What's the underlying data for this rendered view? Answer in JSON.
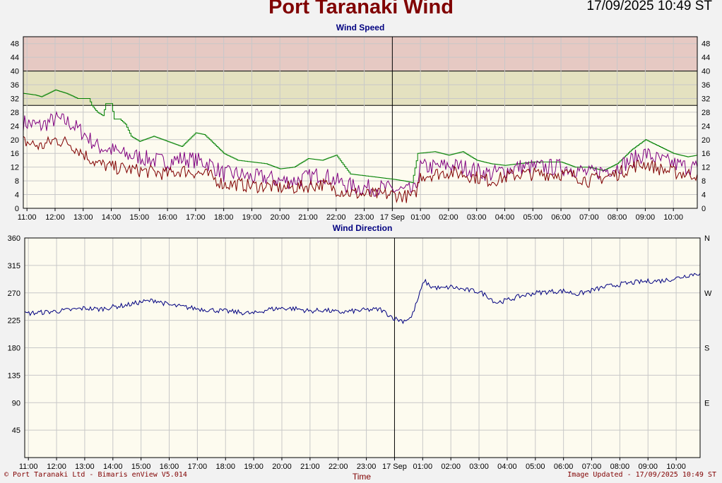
{
  "header": {
    "title": "Port Taranaki Wind",
    "datetime": "17/09/2025 10:49 ST"
  },
  "footer": {
    "left": "© Port Taranaki Ltd - Bimaris enView V5.014",
    "center": "Time",
    "right": "Image Updated - 17/09/2025 10:49 ST"
  },
  "colors": {
    "plot_bg": "#fdfbef",
    "band_high": "#e6c9c3",
    "band_mid": "#e4e1c0",
    "gust_max": "#008000",
    "gust": "#800080",
    "mean": "#800000",
    "direction": "#000080",
    "grid": "#c8c8c8"
  },
  "chart_data": [
    {
      "type": "line",
      "title": "Wind Speed",
      "ylim": [
        0,
        50
      ],
      "yticks": [
        0,
        4,
        8,
        12,
        16,
        20,
        24,
        28,
        32,
        36,
        40,
        44,
        48
      ],
      "bands": [
        {
          "from": 30,
          "to": 40,
          "color": "#e4e1c0"
        },
        {
          "from": 40,
          "to": 50,
          "color": "#e6c9c3"
        }
      ],
      "xlim": [
        10.87,
        34.85
      ],
      "x_unit": "hours since 00:00 16 Sep",
      "xtick_labels": [
        "11:00",
        "12:00",
        "13:00",
        "14:00",
        "15:00",
        "16:00",
        "17:00",
        "18:00",
        "19:00",
        "20:00",
        "21:00",
        "22:00",
        "23:00",
        "17 Sep",
        "01:00",
        "02:00",
        "03:00",
        "04:00",
        "05:00",
        "06:00",
        "07:00",
        "08:00",
        "09:00",
        "10:00"
      ],
      "day_boundary": 24,
      "grid": true,
      "series": [
        {
          "color": "#008000",
          "points": [
            [
              10.87,
              33.5
            ],
            [
              11.3,
              33
            ],
            [
              11.5,
              32.5
            ],
            [
              12.0,
              34.5
            ],
            [
              12.4,
              33.5
            ],
            [
              12.8,
              32
            ],
            [
              13.2,
              32
            ],
            [
              13.3,
              30
            ],
            [
              13.5,
              28
            ],
            [
              13.7,
              27
            ],
            [
              13.8,
              30.5
            ],
            [
              14.0,
              30.5
            ],
            [
              14.1,
              26
            ],
            [
              14.3,
              26
            ],
            [
              14.5,
              24.5
            ],
            [
              14.7,
              21
            ],
            [
              15.0,
              19.5
            ],
            [
              15.5,
              21
            ],
            [
              16.0,
              19.5
            ],
            [
              16.5,
              18
            ],
            [
              17.0,
              22
            ],
            [
              17.3,
              21.5
            ],
            [
              17.5,
              20
            ],
            [
              18.0,
              16
            ],
            [
              18.5,
              14
            ],
            [
              19.0,
              13.5
            ],
            [
              19.5,
              13
            ],
            [
              20.0,
              11.5
            ],
            [
              20.5,
              12
            ],
            [
              21.0,
              14.5
            ],
            [
              21.5,
              14
            ],
            [
              22.0,
              15.5
            ],
            [
              22.5,
              10
            ],
            [
              23.0,
              9.5
            ],
            [
              23.5,
              9
            ],
            [
              24.0,
              8.5
            ],
            [
              24.4,
              8
            ],
            [
              24.7,
              7.5
            ],
            [
              24.9,
              16
            ],
            [
              25.5,
              16.5
            ],
            [
              26.0,
              15.5
            ],
            [
              26.5,
              16.5
            ],
            [
              27.0,
              14
            ],
            [
              27.5,
              13
            ],
            [
              28.0,
              12.5
            ],
            [
              28.5,
              13
            ],
            [
              29.0,
              13.5
            ],
            [
              29.5,
              13.5
            ],
            [
              30.0,
              13.5
            ],
            [
              30.5,
              12
            ],
            [
              31.0,
              12
            ],
            [
              31.5,
              11
            ],
            [
              32.0,
              13
            ],
            [
              32.5,
              17
            ],
            [
              33.0,
              20
            ],
            [
              33.5,
              18
            ],
            [
              34.0,
              16
            ],
            [
              34.5,
              15
            ],
            [
              34.85,
              15.5
            ]
          ]
        },
        {
          "color": "#800080",
          "points": [
            [
              10.87,
              25
            ],
            [
              11.5,
              24
            ],
            [
              12.0,
              26
            ],
            [
              12.5,
              25
            ],
            [
              13.0,
              22
            ],
            [
              13.5,
              18
            ],
            [
              14.0,
              17
            ],
            [
              14.5,
              15.5
            ],
            [
              15.0,
              15
            ],
            [
              15.5,
              14
            ],
            [
              16.0,
              13.5
            ],
            [
              16.5,
              14.5
            ],
            [
              17.0,
              14
            ],
            [
              17.5,
              13
            ],
            [
              18.0,
              10
            ],
            [
              18.5,
              10
            ],
            [
              19.0,
              9
            ],
            [
              19.5,
              9
            ],
            [
              20.0,
              8
            ],
            [
              20.5,
              8
            ],
            [
              21.0,
              9
            ],
            [
              21.5,
              10
            ],
            [
              22.0,
              8
            ],
            [
              22.5,
              6.5
            ],
            [
              23.0,
              6
            ],
            [
              23.5,
              6
            ],
            [
              24.0,
              5.5
            ],
            [
              24.5,
              5
            ],
            [
              24.8,
              5
            ],
            [
              25.0,
              12
            ],
            [
              25.5,
              12
            ],
            [
              26.0,
              12.5
            ],
            [
              26.5,
              12
            ],
            [
              27.0,
              11
            ],
            [
              27.5,
              10
            ],
            [
              28.0,
              11
            ],
            [
              28.5,
              12
            ],
            [
              29.0,
              12
            ],
            [
              29.5,
              12
            ],
            [
              30.0,
              12
            ],
            [
              30.5,
              11.5
            ],
            [
              31.0,
              10
            ],
            [
              31.5,
              11
            ],
            [
              32.0,
              12
            ],
            [
              32.5,
              14
            ],
            [
              33.0,
              16
            ],
            [
              33.5,
              14
            ],
            [
              34.0,
              13
            ],
            [
              34.5,
              12
            ],
            [
              34.85,
              12
            ]
          ]
        },
        {
          "color": "#800000",
          "points": [
            [
              10.87,
              19.5
            ],
            [
              11.5,
              18
            ],
            [
              12.0,
              20
            ],
            [
              12.5,
              19
            ],
            [
              13.0,
              16
            ],
            [
              13.5,
              13
            ],
            [
              14.0,
              12
            ],
            [
              14.5,
              11.5
            ],
            [
              15.0,
              11
            ],
            [
              15.5,
              10.5
            ],
            [
              16.0,
              10
            ],
            [
              16.5,
              11
            ],
            [
              17.0,
              10.5
            ],
            [
              17.5,
              9.5
            ],
            [
              18.0,
              7
            ],
            [
              18.5,
              7
            ],
            [
              19.0,
              6.5
            ],
            [
              19.5,
              6.5
            ],
            [
              20.0,
              6
            ],
            [
              20.5,
              6
            ],
            [
              21.0,
              6.5
            ],
            [
              21.5,
              7
            ],
            [
              22.0,
              5.5
            ],
            [
              22.5,
              4.5
            ],
            [
              23.0,
              4
            ],
            [
              23.5,
              4
            ],
            [
              24.0,
              4
            ],
            [
              24.5,
              3.5
            ],
            [
              24.8,
              3.5
            ],
            [
              25.0,
              9.5
            ],
            [
              25.5,
              10
            ],
            [
              26.0,
              10.5
            ],
            [
              26.5,
              10
            ],
            [
              27.0,
              9
            ],
            [
              27.5,
              8
            ],
            [
              28.0,
              9
            ],
            [
              28.5,
              10
            ],
            [
              29.0,
              10
            ],
            [
              29.5,
              10
            ],
            [
              30.0,
              10
            ],
            [
              30.5,
              9.5
            ],
            [
              31.0,
              8
            ],
            [
              31.5,
              9
            ],
            [
              32.0,
              10
            ],
            [
              32.5,
              12
            ],
            [
              33.0,
              13
            ],
            [
              33.5,
              11.5
            ],
            [
              34.0,
              10.5
            ],
            [
              34.5,
              10
            ],
            [
              34.85,
              10
            ]
          ]
        }
      ]
    },
    {
      "type": "line",
      "title": "Wind Direction",
      "xlabel": "Time",
      "ylim": [
        0,
        360
      ],
      "yticks": [
        45,
        90,
        135,
        180,
        225,
        270,
        315,
        360
      ],
      "compass_labels": [
        {
          "value": 90,
          "label": "E"
        },
        {
          "value": 180,
          "label": "S"
        },
        {
          "value": 270,
          "label": "W"
        },
        {
          "value": 360,
          "label": "N"
        }
      ],
      "xlim": [
        10.87,
        34.85
      ],
      "xtick_labels": [
        "11:00",
        "12:00",
        "13:00",
        "14:00",
        "15:00",
        "16:00",
        "17:00",
        "18:00",
        "19:00",
        "20:00",
        "21:00",
        "22:00",
        "23:00",
        "17 Sep",
        "01:00",
        "02:00",
        "03:00",
        "04:00",
        "05:00",
        "06:00",
        "07:00",
        "08:00",
        "09:00",
        "10:00"
      ],
      "day_boundary": 24,
      "grid": true,
      "series": [
        {
          "color": "#000080",
          "points": [
            [
              10.87,
              236
            ],
            [
              11.5,
              238
            ],
            [
              12.0,
              240
            ],
            [
              12.5,
              242
            ],
            [
              13.0,
              245
            ],
            [
              13.5,
              243
            ],
            [
              14.0,
              247
            ],
            [
              14.5,
              250
            ],
            [
              15.0,
              255
            ],
            [
              15.5,
              258
            ],
            [
              16.0,
              250
            ],
            [
              16.5,
              247
            ],
            [
              17.0,
              244
            ],
            [
              17.5,
              242
            ],
            [
              18.0,
              240
            ],
            [
              18.5,
              238
            ],
            [
              19.0,
              236
            ],
            [
              19.5,
              243
            ],
            [
              20.0,
              245
            ],
            [
              20.5,
              244
            ],
            [
              21.0,
              240
            ],
            [
              21.5,
              242
            ],
            [
              22.0,
              238
            ],
            [
              22.5,
              240
            ],
            [
              23.0,
              242
            ],
            [
              23.5,
              243
            ],
            [
              24.0,
              228
            ],
            [
              24.3,
              224
            ],
            [
              24.6,
              230
            ],
            [
              24.85,
              262
            ],
            [
              25.05,
              290
            ],
            [
              25.3,
              280
            ],
            [
              25.7,
              277
            ],
            [
              26.0,
              280
            ],
            [
              26.5,
              275
            ],
            [
              27.0,
              272
            ],
            [
              27.3,
              265
            ],
            [
              27.6,
              254
            ],
            [
              28.0,
              258
            ],
            [
              28.5,
              265
            ],
            [
              29.0,
              270
            ],
            [
              29.5,
              272
            ],
            [
              30.0,
              273
            ],
            [
              30.5,
              268
            ],
            [
              31.0,
              274
            ],
            [
              31.5,
              280
            ],
            [
              32.0,
              284
            ],
            [
              32.5,
              287
            ],
            [
              33.0,
              289
            ],
            [
              33.5,
              290
            ],
            [
              34.0,
              294
            ],
            [
              34.5,
              300
            ],
            [
              34.85,
              302
            ]
          ]
        }
      ]
    }
  ]
}
